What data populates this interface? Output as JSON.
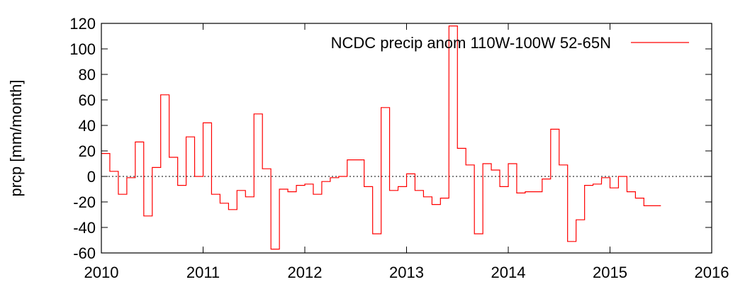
{
  "chart_data": {
    "type": "line",
    "step": true,
    "title": "",
    "xlabel": "",
    "ylabel": "prcp [mm/month]",
    "xlim": [
      2010,
      2016
    ],
    "ylim": [
      -60,
      120
    ],
    "x_ticks": [
      2010,
      2011,
      2012,
      2013,
      2014,
      2015,
      2016
    ],
    "y_ticks": [
      -60,
      -40,
      -20,
      0,
      20,
      40,
      60,
      80,
      100,
      120
    ],
    "zero_line": true,
    "legend_position": "top-right",
    "series": [
      {
        "name": "NCDC precip anom 110W-100W 52-65N",
        "color": "#ff0000",
        "x": [
          2010.0,
          2010.083,
          2010.167,
          2010.25,
          2010.333,
          2010.417,
          2010.5,
          2010.583,
          2010.667,
          2010.75,
          2010.833,
          2010.917,
          2011.0,
          2011.083,
          2011.167,
          2011.25,
          2011.333,
          2011.417,
          2011.5,
          2011.583,
          2011.667,
          2011.75,
          2011.833,
          2011.917,
          2012.0,
          2012.083,
          2012.167,
          2012.25,
          2012.333,
          2012.417,
          2012.5,
          2012.583,
          2012.667,
          2012.75,
          2012.833,
          2012.917,
          2013.0,
          2013.083,
          2013.167,
          2013.25,
          2013.333,
          2013.417,
          2013.5,
          2013.583,
          2013.667,
          2013.75,
          2013.833,
          2013.917,
          2014.0,
          2014.083,
          2014.167,
          2014.25,
          2014.333,
          2014.417,
          2014.5,
          2014.583,
          2014.667,
          2014.75,
          2014.833,
          2014.917,
          2015.0,
          2015.083,
          2015.167,
          2015.25,
          2015.333,
          2015.417
        ],
        "values": [
          18,
          4,
          -14,
          -1,
          27,
          -31,
          7,
          64,
          15,
          -7,
          31,
          0,
          42,
          -14,
          -21,
          -26,
          -11,
          -16,
          49,
          6,
          -57,
          -10,
          -12,
          -7,
          -6,
          -14,
          -4,
          -1,
          0,
          13,
          13,
          -8,
          -45,
          54,
          -11,
          -8,
          2,
          -11,
          -16,
          -22,
          -17,
          118,
          22,
          9,
          -45,
          10,
          5,
          -8,
          10,
          -13,
          -12,
          -12,
          -2,
          37,
          9,
          -51,
          -34,
          -7,
          -6,
          -1,
          -9,
          0,
          -12,
          -17,
          -23,
          -23
        ]
      }
    ]
  }
}
